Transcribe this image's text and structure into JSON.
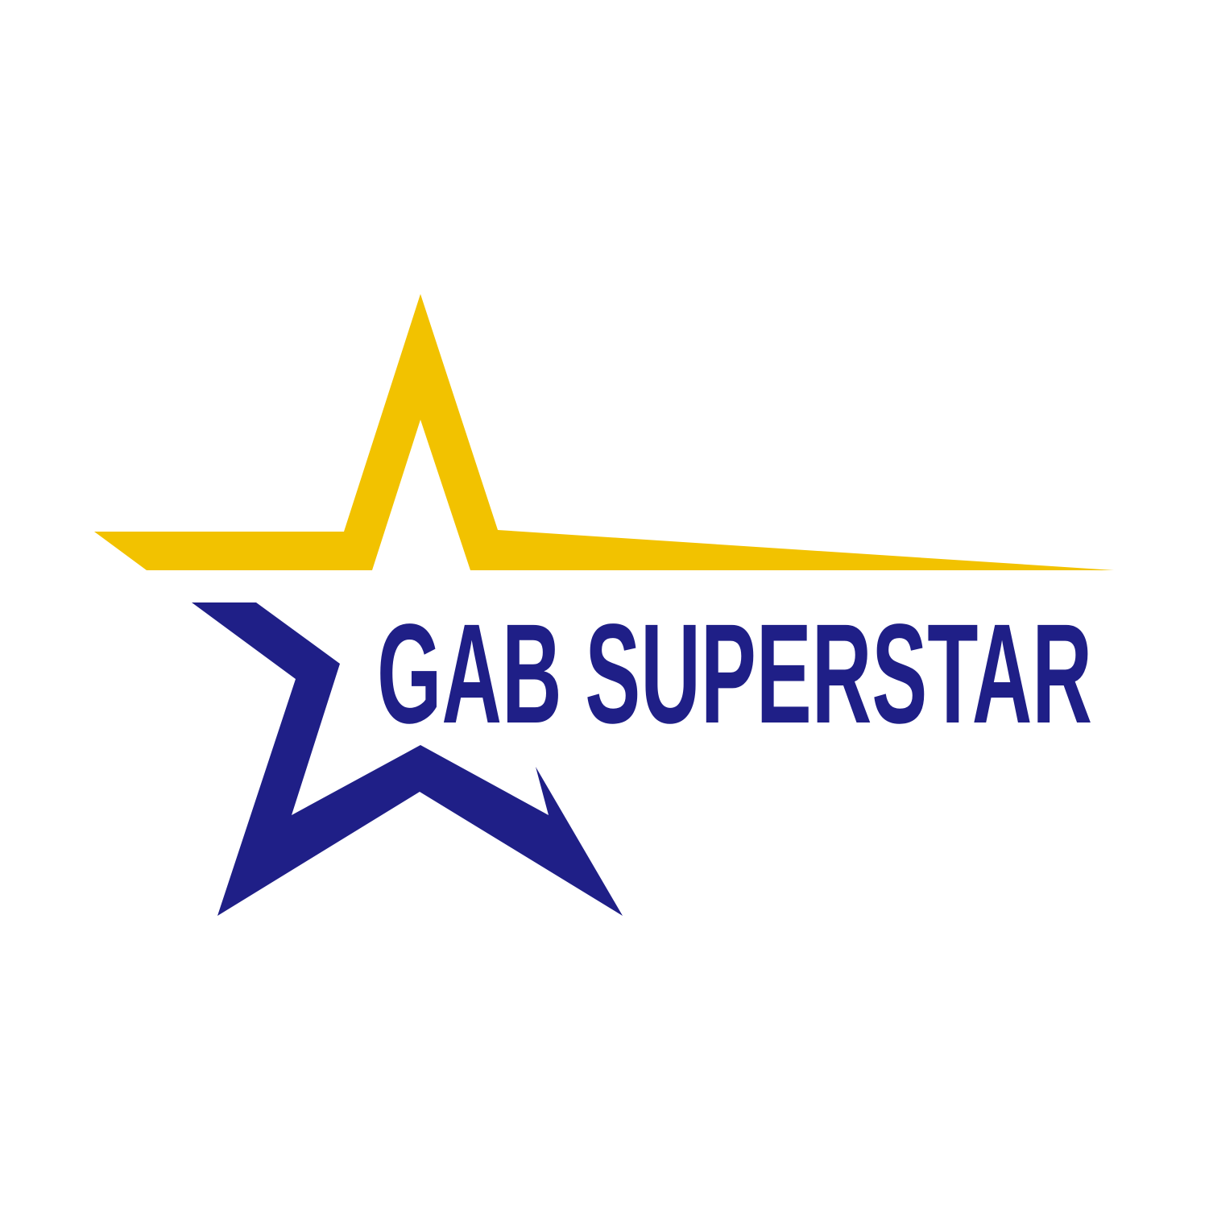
{
  "logo": {
    "brand_name": "GAB SUPERSTAR",
    "icon": "star-icon",
    "colors": {
      "background": "#ffffff",
      "gold": "#f2c200",
      "navy": "#1f1f87"
    }
  }
}
